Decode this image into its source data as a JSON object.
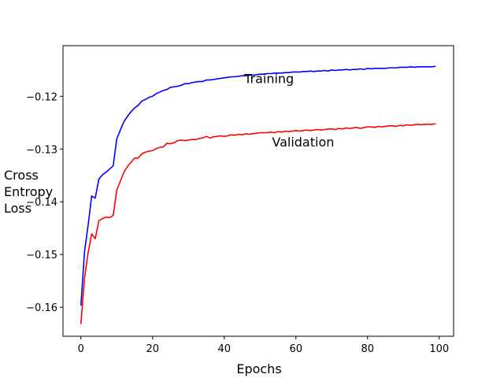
{
  "chart_data": {
    "type": "line",
    "xlabel": "Epochs",
    "ylabel_lines": [
      "Cross",
      "Entropy",
      "Loss"
    ],
    "xlim": [
      -5,
      104
    ],
    "ylim": [
      -0.1655,
      -0.1104
    ],
    "xticks": [
      0,
      20,
      40,
      60,
      80,
      100
    ],
    "xtick_labels": [
      "0",
      "20",
      "40",
      "60",
      "80",
      "100"
    ],
    "yticks": [
      -0.16,
      -0.15,
      -0.14,
      -0.13,
      -0.12
    ],
    "ytick_labels": [
      "−0.16",
      "−0.15",
      "−0.14",
      "−0.13",
      "−0.12"
    ],
    "grid": false,
    "annotations": [
      {
        "text": "Training",
        "x": 52.5,
        "y": -0.1175
      },
      {
        "text": "Validation",
        "x": 62,
        "y": -0.1295
      }
    ],
    "series": [
      {
        "color": "#0000ff",
        "x": [
          0,
          1,
          2,
          3,
          4,
          5,
          6,
          7,
          8,
          9,
          10,
          11,
          12,
          13,
          14,
          15,
          16,
          17,
          18,
          19,
          20,
          21,
          22,
          23,
          24,
          25,
          26,
          27,
          28,
          29,
          30,
          31,
          32,
          33,
          34,
          35,
          36,
          37,
          38,
          39,
          40,
          41,
          42,
          43,
          44,
          45,
          46,
          47,
          48,
          49,
          50,
          51,
          52,
          53,
          54,
          55,
          56,
          57,
          58,
          59,
          60,
          61,
          62,
          63,
          64,
          65,
          66,
          67,
          68,
          69,
          70,
          71,
          72,
          73,
          74,
          75,
          76,
          77,
          78,
          79,
          80,
          81,
          82,
          83,
          84,
          85,
          86,
          87,
          88,
          89,
          90,
          91,
          92,
          93,
          94,
          95,
          96,
          97,
          98,
          99
        ],
        "y": [
          -0.1597,
          -0.1495,
          -0.1445,
          -0.1389,
          -0.1393,
          -0.1357,
          -0.1349,
          -0.1344,
          -0.1338,
          -0.1332,
          -0.1281,
          -0.1264,
          -0.1248,
          -0.1238,
          -0.1229,
          -0.1222,
          -0.1217,
          -0.1209,
          -0.1206,
          -0.1202,
          -0.12,
          -0.1195,
          -0.1192,
          -0.1189,
          -0.1187,
          -0.1183,
          -0.1182,
          -0.1181,
          -0.1179,
          -0.1176,
          -0.1176,
          -0.1174,
          -0.1173,
          -0.1172,
          -0.1172,
          -0.1169,
          -0.1169,
          -0.1168,
          -0.1167,
          -0.1166,
          -0.1165,
          -0.1164,
          -0.1163,
          -0.1163,
          -0.1162,
          -0.1161,
          -0.1161,
          -0.116,
          -0.116,
          -0.1159,
          -0.1158,
          -0.1158,
          -0.1157,
          -0.1157,
          -0.1156,
          -0.1156,
          -0.1156,
          -0.1155,
          -0.1155,
          -0.1154,
          -0.1154,
          -0.1154,
          -0.1153,
          -0.1153,
          -0.1152,
          -0.1153,
          -0.1152,
          -0.1152,
          -0.1151,
          -0.1152,
          -0.115,
          -0.1151,
          -0.115,
          -0.115,
          -0.1149,
          -0.115,
          -0.1149,
          -0.1149,
          -0.1148,
          -0.1149,
          -0.1147,
          -0.1148,
          -0.1147,
          -0.1147,
          -0.1147,
          -0.1147,
          -0.1146,
          -0.1146,
          -0.1146,
          -0.1145,
          -0.1145,
          -0.1145,
          -0.1144,
          -0.1145,
          -0.1144,
          -0.1144,
          -0.1144,
          -0.1144,
          -0.1144,
          -0.1143
        ]
      },
      {
        "color": "#ff0000",
        "x": [
          0,
          1,
          2,
          3,
          4,
          5,
          6,
          7,
          8,
          9,
          10,
          11,
          12,
          13,
          14,
          15,
          16,
          17,
          18,
          19,
          20,
          21,
          22,
          23,
          24,
          25,
          26,
          27,
          28,
          29,
          30,
          31,
          32,
          33,
          34,
          35,
          36,
          37,
          38,
          39,
          40,
          41,
          42,
          43,
          44,
          45,
          46,
          47,
          48,
          49,
          50,
          51,
          52,
          53,
          54,
          55,
          56,
          57,
          58,
          59,
          60,
          61,
          62,
          63,
          64,
          65,
          66,
          67,
          68,
          69,
          70,
          71,
          72,
          73,
          74,
          75,
          76,
          77,
          78,
          79,
          80,
          81,
          82,
          83,
          84,
          85,
          86,
          87,
          88,
          89,
          90,
          91,
          92,
          93,
          94,
          95,
          96,
          97,
          98,
          99
        ],
        "y": [
          -0.1632,
          -0.1545,
          -0.1497,
          -0.1461,
          -0.147,
          -0.1436,
          -0.1432,
          -0.1429,
          -0.143,
          -0.1426,
          -0.1378,
          -0.1361,
          -0.1344,
          -0.1333,
          -0.1325,
          -0.1317,
          -0.1317,
          -0.1309,
          -0.1306,
          -0.1304,
          -0.1303,
          -0.1299,
          -0.1297,
          -0.1296,
          -0.1289,
          -0.129,
          -0.1288,
          -0.1284,
          -0.1283,
          -0.1284,
          -0.1283,
          -0.1282,
          -0.1282,
          -0.128,
          -0.1279,
          -0.1276,
          -0.1279,
          -0.1277,
          -0.1276,
          -0.1275,
          -0.1276,
          -0.1275,
          -0.1273,
          -0.1274,
          -0.1272,
          -0.1273,
          -0.1271,
          -0.1272,
          -0.1271,
          -0.127,
          -0.1269,
          -0.1269,
          -0.1269,
          -0.1268,
          -0.1269,
          -0.1267,
          -0.1268,
          -0.1266,
          -0.1267,
          -0.1266,
          -0.1265,
          -0.1266,
          -0.1265,
          -0.1264,
          -0.1265,
          -0.1264,
          -0.1263,
          -0.1264,
          -0.1263,
          -0.1262,
          -0.1262,
          -0.1263,
          -0.1261,
          -0.1262,
          -0.126,
          -0.1261,
          -0.126,
          -0.1259,
          -0.1261,
          -0.1259,
          -0.1258,
          -0.1258,
          -0.1259,
          -0.1257,
          -0.1258,
          -0.1257,
          -0.1256,
          -0.1256,
          -0.1257,
          -0.1255,
          -0.1256,
          -0.1254,
          -0.1255,
          -0.1254,
          -0.1253,
          -0.1254,
          -0.1253,
          -0.1253,
          -0.1253,
          -0.1252
        ]
      }
    ]
  }
}
